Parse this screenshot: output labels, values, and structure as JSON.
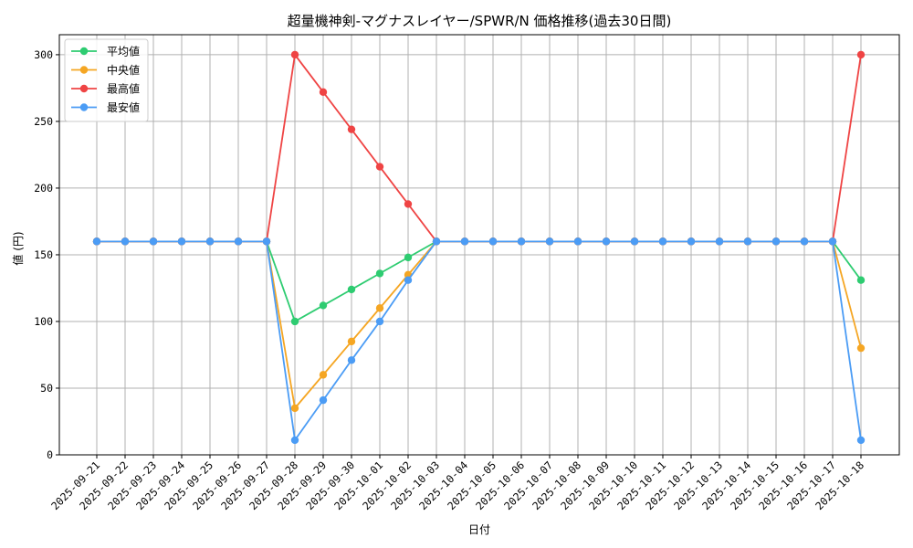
{
  "chart_data": {
    "type": "line",
    "title": "超量機神剣-マグナスレイヤー/SPWR/N 価格推移(過去30日間)",
    "xlabel": "日付",
    "ylabel": "値 (円)",
    "ylim": [
      0,
      315
    ],
    "yticks": [
      0,
      50,
      100,
      150,
      200,
      250,
      300
    ],
    "grid": true,
    "legend_position": "top-left",
    "categories": [
      "2025-09-21",
      "2025-09-22",
      "2025-09-23",
      "2025-09-24",
      "2025-09-25",
      "2025-09-26",
      "2025-09-27",
      "2025-09-28",
      "2025-09-29",
      "2025-09-30",
      "2025-10-01",
      "2025-10-02",
      "2025-10-03",
      "2025-10-04",
      "2025-10-05",
      "2025-10-06",
      "2025-10-07",
      "2025-10-08",
      "2025-10-09",
      "2025-10-10",
      "2025-10-11",
      "2025-10-12",
      "2025-10-13",
      "2025-10-14",
      "2025-10-15",
      "2025-10-16",
      "2025-10-17",
      "2025-10-18"
    ],
    "series": [
      {
        "name": "平均値",
        "color": "#2ecc71",
        "values": [
          160,
          160,
          160,
          160,
          160,
          160,
          160,
          100,
          112,
          124,
          136,
          148,
          160,
          160,
          160,
          160,
          160,
          160,
          160,
          160,
          160,
          160,
          160,
          160,
          160,
          160,
          160,
          131
        ]
      },
      {
        "name": "中央値",
        "color": "#f5a623",
        "values": [
          160,
          160,
          160,
          160,
          160,
          160,
          160,
          35,
          60,
          85,
          110,
          135,
          160,
          160,
          160,
          160,
          160,
          160,
          160,
          160,
          160,
          160,
          160,
          160,
          160,
          160,
          160,
          80
        ]
      },
      {
        "name": "最高値",
        "color": "#ef4444",
        "values": [
          160,
          160,
          160,
          160,
          160,
          160,
          160,
          300,
          272,
          244,
          216,
          188,
          160,
          160,
          160,
          160,
          160,
          160,
          160,
          160,
          160,
          160,
          160,
          160,
          160,
          160,
          160,
          300
        ]
      },
      {
        "name": "最安値",
        "color": "#4b9cf5",
        "values": [
          160,
          160,
          160,
          160,
          160,
          160,
          160,
          11,
          41,
          71,
          100,
          131,
          160,
          160,
          160,
          160,
          160,
          160,
          160,
          160,
          160,
          160,
          160,
          160,
          160,
          160,
          160,
          11
        ]
      }
    ]
  }
}
